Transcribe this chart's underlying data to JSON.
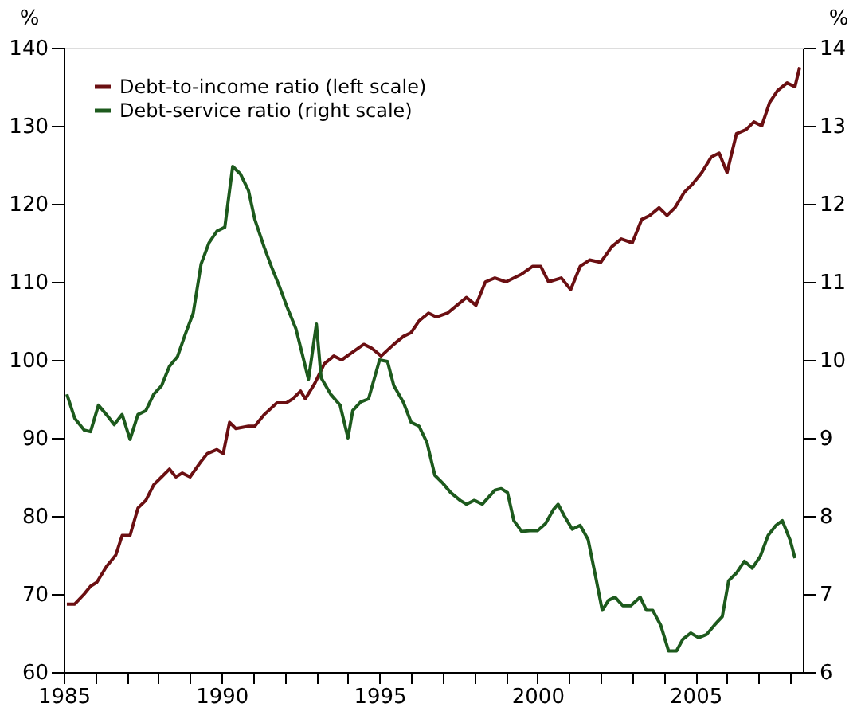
{
  "chart_data": {
    "type": "line",
    "ylabel": "%",
    "y2label": "%",
    "xlim": [
      1985,
      2008.4
    ],
    "ylim": [
      60,
      140
    ],
    "yticks": [
      60,
      70,
      80,
      90,
      100,
      110,
      120,
      130,
      140
    ],
    "y2lim": [
      6,
      14
    ],
    "y2ticks": [
      6,
      7,
      8,
      9,
      10,
      11,
      12,
      13,
      14
    ],
    "xticks": [
      1985,
      {
        "value": 1986,
        "label": null
      },
      {
        "value": 1987,
        "label": null
      },
      {
        "value": 1988,
        "label": null
      },
      {
        "value": 1989,
        "label": null
      },
      1990,
      {
        "value": 1991,
        "label": null
      },
      {
        "value": 1992,
        "label": null
      },
      {
        "value": 1993,
        "label": null
      },
      {
        "value": 1994,
        "label": null
      },
      1995,
      {
        "value": 1996,
        "label": null
      },
      {
        "value": 1997,
        "label": null
      },
      {
        "value": 1998,
        "label": null
      },
      {
        "value": 1999,
        "label": null
      },
      2000,
      {
        "value": 2001,
        "label": null
      },
      {
        "value": 2002,
        "label": null
      },
      {
        "value": 2003,
        "label": null
      },
      {
        "value": 2004,
        "label": null
      },
      2005,
      {
        "value": 2006,
        "label": null
      },
      {
        "value": 2007,
        "label": null
      },
      {
        "value": 2008,
        "label": null
      }
    ],
    "grid": false,
    "legend": "top left",
    "line_style": "solid",
    "marker": "none",
    "series": [
      {
        "name": "Debt-to-income ratio (left scale)",
        "color": "#6b0f12",
        "axis": "y",
        "x": [
          1985.1,
          1985.35,
          1985.65,
          1985.85,
          1986.05,
          1986.35,
          1986.65,
          1986.85,
          1987.1,
          1987.35,
          1987.6,
          1987.85,
          1988.1,
          1988.35,
          1988.55,
          1988.75,
          1989,
          1989.35,
          1989.55,
          1989.85,
          1990.05,
          1990.25,
          1990.45,
          1990.85,
          1991.05,
          1991.35,
          1991.75,
          1992.05,
          1992.25,
          1992.5,
          1992.65,
          1992.95,
          1993.25,
          1993.55,
          1993.8,
          1994.15,
          1994.5,
          1994.75,
          1995.05,
          1995.45,
          1995.75,
          1996,
          1996.25,
          1996.55,
          1996.8,
          1997.15,
          1997.45,
          1997.75,
          1998.05,
          1998.35,
          1998.65,
          1999,
          1999.5,
          1999.85,
          2000.1,
          2000.35,
          2000.75,
          2001.05,
          2001.35,
          2001.65,
          2002,
          2002.35,
          2002.65,
          2003,
          2003.3,
          2003.55,
          2003.85,
          2004.1,
          2004.35,
          2004.65,
          2004.9,
          2005.2,
          2005.5,
          2005.75,
          2006,
          2006.3,
          2006.6,
          2006.85,
          2007.1,
          2007.35,
          2007.6,
          2007.9,
          2008.15,
          2008.3
        ],
        "values": [
          68.7,
          68.7,
          70,
          71,
          71.5,
          73.5,
          75,
          77.5,
          77.5,
          81,
          82,
          84,
          85,
          86,
          85,
          85.5,
          85,
          87,
          88,
          88.5,
          88,
          92,
          91.2,
          91.5,
          91.5,
          93,
          94.5,
          94.5,
          95,
          96,
          95,
          97,
          99.5,
          100.5,
          100,
          101,
          102,
          101.5,
          100.5,
          102,
          103,
          103.5,
          105,
          106,
          105.5,
          106,
          107,
          108,
          107,
          110,
          110.5,
          110,
          111,
          112,
          112,
          110,
          110.5,
          109,
          112,
          112.8,
          112.5,
          114.5,
          115.5,
          115,
          118,
          118.5,
          119.5,
          118.5,
          119.5,
          121.5,
          122.5,
          124,
          126,
          126.5,
          124,
          129,
          129.5,
          130.5,
          130,
          133,
          134.5,
          135.5,
          135,
          137.5
        ]
      },
      {
        "name": "Debt-service ratio (right scale)",
        "color": "#1d5a1d",
        "axis": "y2",
        "x": [
          1985.1,
          1985.35,
          1985.65,
          1985.85,
          1986.1,
          1986.35,
          1986.6,
          1986.85,
          1987.1,
          1987.35,
          1987.6,
          1987.85,
          1988.1,
          1988.35,
          1988.6,
          1988.85,
          1989.1,
          1989.35,
          1989.6,
          1989.85,
          1990.1,
          1990.35,
          1990.6,
          1990.85,
          1991.05,
          1991.35,
          1991.6,
          1991.85,
          1992.05,
          1992.35,
          1992.55,
          1992.75,
          1993,
          1993.15,
          1993.45,
          1993.75,
          1994,
          1994.15,
          1994.4,
          1994.65,
          1995,
          1995.25,
          1995.45,
          1995.75,
          1996,
          1996.25,
          1996.5,
          1996.75,
          1997,
          1997.25,
          1997.55,
          1997.75,
          1998,
          1998.25,
          1998.65,
          1998.85,
          1999.05,
          1999.25,
          1999.5,
          1999.75,
          2000,
          2000.25,
          2000.5,
          2000.65,
          2000.85,
          2001.1,
          2001.35,
          2001.6,
          2001.85,
          2002.05,
          2002.25,
          2002.45,
          2002.7,
          2002.95,
          2003.25,
          2003.45,
          2003.65,
          2003.9,
          2004.15,
          2004.4,
          2004.6,
          2004.85,
          2005.1,
          2005.35,
          2005.6,
          2005.85,
          2006.05,
          2006.3,
          2006.55,
          2006.8,
          2007.05,
          2007.3,
          2007.55,
          2007.75,
          2008,
          2008.15
        ],
        "values": [
          9.56,
          9.25,
          9.1,
          9.08,
          9.42,
          9.3,
          9.17,
          9.3,
          8.98,
          9.3,
          9.35,
          9.56,
          9.67,
          9.92,
          10.04,
          10.33,
          10.6,
          11.23,
          11.5,
          11.65,
          11.7,
          12.48,
          12.38,
          12.17,
          11.8,
          11.44,
          11.17,
          10.92,
          10.7,
          10.4,
          10.08,
          9.75,
          10.46,
          9.77,
          9.56,
          9.42,
          9,
          9.35,
          9.46,
          9.5,
          10,
          9.98,
          9.67,
          9.46,
          9.2,
          9.15,
          8.94,
          8.52,
          8.42,
          8.3,
          8.2,
          8.15,
          8.2,
          8.15,
          8.33,
          8.35,
          8.3,
          7.94,
          7.8,
          7.81,
          7.81,
          7.9,
          8.08,
          8.15,
          8,
          7.83,
          7.88,
          7.7,
          7.2,
          6.79,
          6.92,
          6.96,
          6.85,
          6.85,
          6.96,
          6.79,
          6.79,
          6.6,
          6.27,
          6.27,
          6.42,
          6.5,
          6.44,
          6.48,
          6.6,
          6.71,
          7.17,
          7.27,
          7.42,
          7.33,
          7.48,
          7.75,
          7.88,
          7.94,
          7.69,
          7.46
        ]
      }
    ]
  }
}
